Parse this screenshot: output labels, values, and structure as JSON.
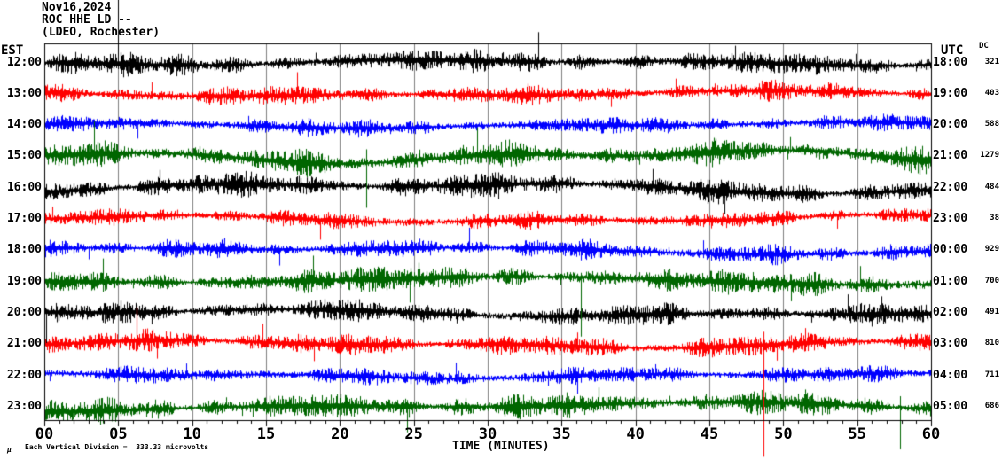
{
  "header": {
    "date": "Nov16,2024",
    "station": "ROC HHE LD --",
    "network": "(LDEO, Rochester)"
  },
  "axes": {
    "left_header": "EST",
    "right_header": "UTC",
    "dc_header": "DC",
    "x_label": "TIME (MINUTES)",
    "x_ticks": [
      "00",
      "05",
      "10",
      "15",
      "20",
      "25",
      "30",
      "35",
      "40",
      "45",
      "50",
      "55",
      "60"
    ]
  },
  "footer": {
    "mu_mark": "μ",
    "scale_note": "Each Vertical Division =  333.33 microvolts"
  },
  "colors": {
    "black": "#000000",
    "red": "#ff0000",
    "blue": "#0000ff",
    "green": "#006600",
    "grid": "#808080",
    "frame": "#000000"
  },
  "chart_data": {
    "type": "line",
    "subtype": "helicorder-seismogram",
    "title": "ROC HHE LD -- (LDEO, Rochester) Nov16,2024",
    "xlabel": "TIME (MINUTES)",
    "x_axis": {
      "min": 0,
      "max": 60,
      "major_tick_minutes": 5,
      "minor_tick_minutes": 1,
      "grid": "vertical gray lines every 5 minutes"
    },
    "scale_note": "Each Vertical Division =  333.33 microvolts",
    "rows": [
      {
        "est": "12:00",
        "utc": "18:00",
        "dc": "321",
        "color": "black",
        "amp": 9,
        "drift": 3,
        "spike": 0.014,
        "seed": 11
      },
      {
        "est": "13:00",
        "utc": "19:00",
        "dc": "403",
        "color": "red",
        "amp": 8,
        "drift": 3,
        "spike": 0.01,
        "seed": 22
      },
      {
        "est": "14:00",
        "utc": "20:00",
        "dc": "588",
        "color": "blue",
        "amp": 7,
        "drift": 3,
        "spike": 0.008,
        "seed": 33
      },
      {
        "est": "15:00",
        "utc": "21:00",
        "dc": "1279",
        "color": "green",
        "amp": 10,
        "drift": 7,
        "spike": 0.01,
        "seed": 44
      },
      {
        "est": "16:00",
        "utc": "22:00",
        "dc": "484",
        "color": "black",
        "amp": 10,
        "drift": 6,
        "spike": 0.008,
        "seed": 55
      },
      {
        "est": "17:00",
        "utc": "23:00",
        "dc": "38",
        "color": "red",
        "amp": 7,
        "drift": 4,
        "spike": 0.01,
        "seed": 66
      },
      {
        "est": "18:00",
        "utc": "00:00",
        "dc": "929",
        "color": "blue",
        "amp": 8,
        "drift": 4,
        "spike": 0.012,
        "seed": 77
      },
      {
        "est": "19:00",
        "utc": "01:00",
        "dc": "700",
        "color": "green",
        "amp": 10,
        "drift": 5,
        "spike": 0.012,
        "seed": 88
      },
      {
        "est": "20:00",
        "utc": "02:00",
        "dc": "491",
        "color": "black",
        "amp": 9,
        "drift": 4,
        "spike": 0.01,
        "seed": 99
      },
      {
        "est": "21:00",
        "utc": "03:00",
        "dc": "810",
        "color": "red",
        "amp": 9,
        "drift": 4,
        "spike": 0.012,
        "seed": 110
      },
      {
        "est": "22:00",
        "utc": "04:00",
        "dc": "711",
        "color": "blue",
        "amp": 7,
        "drift": 3,
        "spike": 0.01,
        "seed": 121
      },
      {
        "est": "23:00",
        "utc": "05:00",
        "dc": "686",
        "color": "green",
        "amp": 10,
        "drift": 5,
        "spike": 0.012,
        "seed": 132
      }
    ],
    "events": [
      {
        "row": 0,
        "min": 5.0,
        "up": 72,
        "down": 6
      },
      {
        "row": 3,
        "min": 21.8,
        "up": 8,
        "down": 58
      },
      {
        "row": 7,
        "min": 36.3,
        "up": 10,
        "down": 62
      },
      {
        "row": 9,
        "min": 48.66,
        "up": 14,
        "down": 127
      },
      {
        "row": 11,
        "min": 57.9,
        "up": 12,
        "down": 48
      }
    ]
  }
}
